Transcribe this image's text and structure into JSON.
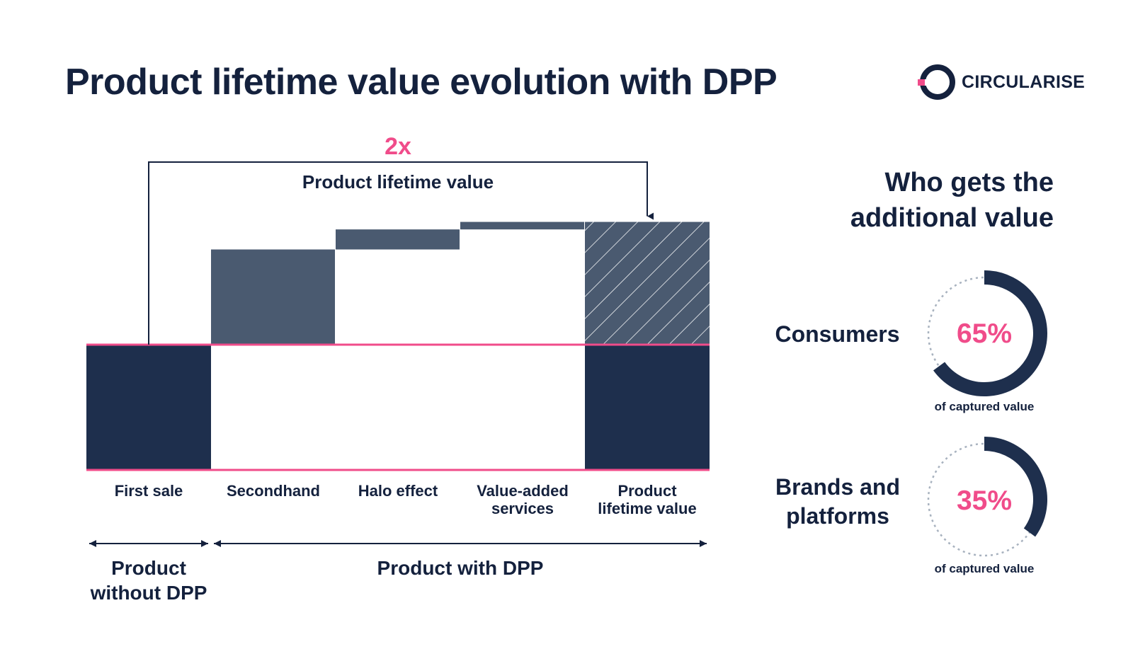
{
  "title": "Product lifetime value evolution with DPP",
  "logo": {
    "text": "CIRCULARISE"
  },
  "colors": {
    "navy": "#1e2f4d",
    "slate": "#4a5a70",
    "pink": "#f04c8a",
    "dotted": "#a8b2bf"
  },
  "chart_data": {
    "type": "waterfall",
    "title": "",
    "annotation_multiplier": "2x",
    "annotation_label": "Product lifetime value",
    "categories": [
      "First sale",
      "Secondhand",
      "Halo effect",
      "Value-added services",
      "Product lifetime value"
    ],
    "category_labels": [
      [
        "First sale"
      ],
      [
        "Secondhand"
      ],
      [
        "Halo effect"
      ],
      [
        "Value-added",
        "services"
      ],
      [
        "Product",
        "lifetime value"
      ]
    ],
    "bars": [
      {
        "category": "First sale",
        "kind": "total",
        "start": 0,
        "end": 100
      },
      {
        "category": "Secondhand",
        "kind": "increment",
        "start": 100,
        "end": 176
      },
      {
        "category": "Halo effect",
        "kind": "increment",
        "start": 176,
        "end": 192
      },
      {
        "category": "Value-added services",
        "kind": "increment",
        "start": 192,
        "end": 198
      },
      {
        "category": "Product lifetime value",
        "kind": "total",
        "start": 0,
        "end": 100,
        "hatched_start": 100,
        "hatched_end": 198
      }
    ],
    "ylim": [
      0,
      198
    ],
    "groups": [
      {
        "label": [
          "Product",
          "without DPP"
        ],
        "from": 0,
        "to": 0
      },
      {
        "label": [
          "Product with DPP"
        ],
        "from": 1,
        "to": 4
      }
    ]
  },
  "right_panel": {
    "title_line1": "Who gets the",
    "title_line2": "additional value",
    "items": [
      {
        "label_lines": [
          "Consumers"
        ],
        "percent": 65,
        "percent_text": "65%",
        "caption": "of captured value"
      },
      {
        "label_lines": [
          "Brands and",
          "platforms"
        ],
        "percent": 35,
        "percent_text": "35%",
        "caption": "of captured value"
      }
    ]
  }
}
